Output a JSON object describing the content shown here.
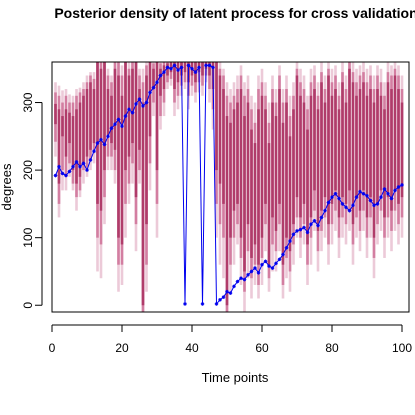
{
  "chart_data": {
    "type": "line",
    "title": "Posterior density of latent process for cross validation",
    "xlabel": "Time points",
    "ylabel": "degrees",
    "xlim": [
      0,
      102
    ],
    "ylim": [
      -10,
      360
    ],
    "x_ticks": [
      0,
      20,
      40,
      60,
      80,
      100
    ],
    "y_ticks": [
      0,
      100,
      200,
      300
    ],
    "band_colors": [
      "#b03c6a",
      "#d37ea1",
      "#eccad8"
    ],
    "line_color": "#0000ee",
    "series": [
      {
        "values": [
          [
            1,
            192
          ],
          [
            2,
            205
          ],
          [
            3,
            195
          ],
          [
            4,
            192
          ],
          [
            5,
            198
          ],
          [
            6,
            205
          ],
          [
            7,
            212
          ],
          [
            8,
            205
          ],
          [
            9,
            210
          ],
          [
            10,
            200
          ],
          [
            11,
            215
          ],
          [
            12,
            228
          ],
          [
            13,
            240
          ],
          [
            14,
            245
          ],
          [
            15,
            238
          ],
          [
            16,
            250
          ],
          [
            17,
            262
          ],
          [
            18,
            268
          ],
          [
            19,
            275
          ],
          [
            20,
            265
          ],
          [
            21,
            280
          ],
          [
            22,
            290
          ],
          [
            23,
            285
          ],
          [
            24,
            298
          ],
          [
            25,
            305
          ],
          [
            26,
            295
          ],
          [
            27,
            300
          ],
          [
            28,
            315
          ],
          [
            29,
            322
          ],
          [
            30,
            330
          ],
          [
            31,
            340
          ],
          [
            32,
            345
          ],
          [
            33,
            352
          ],
          [
            34,
            350
          ],
          [
            35,
            355
          ],
          [
            36,
            348
          ],
          [
            37,
            352
          ],
          [
            38,
            2
          ],
          [
            39,
            355
          ],
          [
            40,
            350
          ],
          [
            41,
            345
          ],
          [
            42,
            352
          ],
          [
            43,
            2
          ],
          [
            44,
            355
          ],
          [
            45,
            355
          ],
          [
            46,
            352
          ],
          [
            47,
            2
          ],
          [
            48,
            8
          ],
          [
            49,
            12
          ],
          [
            50,
            20
          ],
          [
            51,
            18
          ],
          [
            52,
            28
          ],
          [
            53,
            35
          ],
          [
            54,
            40
          ],
          [
            55,
            38
          ],
          [
            56,
            45
          ],
          [
            57,
            50
          ],
          [
            58,
            55
          ],
          [
            59,
            48
          ],
          [
            60,
            60
          ],
          [
            61,
            65
          ],
          [
            62,
            58
          ],
          [
            63,
            55
          ],
          [
            64,
            62
          ],
          [
            65,
            68
          ],
          [
            66,
            75
          ],
          [
            67,
            85
          ],
          [
            68,
            95
          ],
          [
            69,
            105
          ],
          [
            70,
            110
          ],
          [
            71,
            112
          ],
          [
            72,
            115
          ],
          [
            73,
            108
          ],
          [
            74,
            120
          ],
          [
            75,
            125
          ],
          [
            76,
            118
          ],
          [
            77,
            130
          ],
          [
            78,
            140
          ],
          [
            79,
            152
          ],
          [
            80,
            160
          ],
          [
            81,
            165
          ],
          [
            82,
            158
          ],
          [
            83,
            150
          ],
          [
            84,
            145
          ],
          [
            85,
            140
          ],
          [
            86,
            148
          ],
          [
            87,
            160
          ],
          [
            88,
            168
          ],
          [
            89,
            165
          ],
          [
            90,
            162
          ],
          [
            91,
            155
          ],
          [
            92,
            148
          ],
          [
            93,
            150
          ],
          [
            94,
            160
          ],
          [
            95,
            172
          ],
          [
            96,
            165
          ],
          [
            97,
            158
          ],
          [
            98,
            170
          ],
          [
            99,
            175
          ],
          [
            100,
            178
          ]
        ]
      }
    ],
    "bands": [
      [
        1,
        268,
        298,
        242,
        315,
        220,
        330
      ],
      [
        2,
        180,
        290,
        150,
        310,
        130,
        325
      ],
      [
        3,
        250,
        280,
        200,
        300,
        170,
        318
      ],
      [
        4,
        220,
        290,
        190,
        310,
        170,
        320
      ],
      [
        5,
        240,
        285,
        210,
        300,
        190,
        312
      ],
      [
        6,
        200,
        280,
        180,
        300,
        170,
        310
      ],
      [
        7,
        180,
        290,
        160,
        310,
        140,
        320
      ],
      [
        8,
        190,
        300,
        170,
        315,
        160,
        322
      ],
      [
        9,
        210,
        310,
        200,
        320,
        180,
        330
      ],
      [
        10,
        220,
        320,
        200,
        330,
        190,
        340
      ],
      [
        11,
        230,
        330,
        215,
        340,
        200,
        345
      ],
      [
        12,
        240,
        320,
        225,
        335,
        210,
        345
      ],
      [
        13,
        150,
        360,
        100,
        360,
        50,
        360
      ],
      [
        14,
        140,
        350,
        90,
        360,
        40,
        360
      ],
      [
        15,
        200,
        360,
        160,
        360,
        120,
        360
      ],
      [
        16,
        250,
        320,
        220,
        340,
        200,
        350
      ],
      [
        17,
        240,
        310,
        220,
        330,
        200,
        340
      ],
      [
        18,
        230,
        350,
        200,
        360,
        180,
        360
      ],
      [
        19,
        100,
        340,
        60,
        360,
        20,
        360
      ],
      [
        20,
        90,
        310,
        60,
        340,
        30,
        355
      ],
      [
        21,
        200,
        360,
        150,
        360,
        100,
        360
      ],
      [
        22,
        220,
        340,
        180,
        350,
        150,
        360
      ],
      [
        23,
        240,
        350,
        210,
        360,
        180,
        360
      ],
      [
        24,
        160,
        360,
        120,
        360,
        80,
        360
      ],
      [
        25,
        230,
        320,
        200,
        340,
        180,
        350
      ],
      [
        26,
        0,
        300,
        -10,
        330,
        -10,
        350
      ],
      [
        27,
        120,
        340,
        60,
        355,
        20,
        360
      ],
      [
        28,
        250,
        360,
        210,
        360,
        170,
        360
      ],
      [
        29,
        320,
        350,
        300,
        358,
        280,
        360
      ],
      [
        30,
        200,
        360,
        150,
        360,
        100,
        360
      ],
      [
        31,
        310,
        350,
        280,
        358,
        260,
        360
      ],
      [
        32,
        320,
        355,
        300,
        360,
        280,
        360
      ],
      [
        33,
        340,
        358,
        330,
        360,
        320,
        360
      ],
      [
        34,
        345,
        360,
        335,
        360,
        325,
        360
      ],
      [
        35,
        320,
        360,
        300,
        360,
        280,
        360
      ],
      [
        36,
        330,
        360,
        310,
        360,
        290,
        360
      ],
      [
        37,
        340,
        360,
        325,
        360,
        310,
        360
      ],
      [
        38,
        345,
        360,
        330,
        360,
        320,
        360
      ],
      [
        39,
        330,
        360,
        310,
        360,
        290,
        360
      ],
      [
        40,
        340,
        360,
        325,
        360,
        310,
        360
      ],
      [
        41,
        330,
        360,
        315,
        360,
        300,
        360
      ],
      [
        42,
        345,
        360,
        330,
        360,
        315,
        360
      ],
      [
        43,
        340,
        360,
        325,
        360,
        310,
        360
      ],
      [
        44,
        350,
        360,
        340,
        360,
        330,
        360
      ],
      [
        45,
        340,
        360,
        320,
        360,
        300,
        360
      ],
      [
        46,
        320,
        360,
        290,
        360,
        260,
        360
      ],
      [
        47,
        200,
        360,
        150,
        360,
        100,
        360
      ],
      [
        48,
        180,
        340,
        120,
        350,
        60,
        360
      ],
      [
        49,
        150,
        320,
        100,
        340,
        40,
        350
      ],
      [
        50,
        0,
        280,
        -10,
        310,
        -10,
        330
      ],
      [
        51,
        100,
        270,
        60,
        300,
        20,
        320
      ],
      [
        52,
        140,
        290,
        100,
        310,
        60,
        330
      ],
      [
        53,
        150,
        300,
        120,
        320,
        90,
        340
      ],
      [
        54,
        100,
        320,
        70,
        340,
        30,
        355
      ],
      [
        55,
        50,
        280,
        20,
        310,
        -10,
        330
      ],
      [
        56,
        120,
        300,
        80,
        320,
        40,
        340
      ],
      [
        57,
        70,
        260,
        40,
        290,
        10,
        310
      ],
      [
        58,
        90,
        240,
        60,
        270,
        30,
        300
      ],
      [
        59,
        60,
        290,
        30,
        320,
        10,
        340
      ],
      [
        60,
        100,
        310,
        70,
        330,
        30,
        350
      ],
      [
        61,
        150,
        290,
        120,
        310,
        80,
        330
      ],
      [
        62,
        60,
        240,
        40,
        270,
        20,
        300
      ],
      [
        63,
        130,
        300,
        90,
        320,
        50,
        340
      ],
      [
        64,
        110,
        280,
        80,
        300,
        50,
        320
      ],
      [
        65,
        150,
        320,
        120,
        340,
        80,
        355
      ],
      [
        66,
        60,
        270,
        30,
        300,
        10,
        320
      ],
      [
        67,
        100,
        300,
        70,
        320,
        40,
        340
      ],
      [
        68,
        80,
        250,
        50,
        280,
        20,
        310
      ],
      [
        69,
        120,
        290,
        90,
        310,
        60,
        330
      ],
      [
        70,
        160,
        340,
        130,
        350,
        100,
        360
      ],
      [
        71,
        130,
        310,
        100,
        330,
        70,
        350
      ],
      [
        72,
        150,
        300,
        120,
        320,
        90,
        340
      ],
      [
        73,
        90,
        260,
        60,
        290,
        30,
        310
      ],
      [
        74,
        130,
        310,
        100,
        330,
        60,
        350
      ],
      [
        75,
        170,
        320,
        140,
        340,
        110,
        355
      ],
      [
        76,
        110,
        290,
        80,
        310,
        50,
        330
      ],
      [
        77,
        140,
        330,
        110,
        345,
        80,
        360
      ],
      [
        78,
        160,
        300,
        130,
        320,
        100,
        340
      ],
      [
        79,
        120,
        340,
        90,
        350,
        60,
        360
      ],
      [
        80,
        150,
        310,
        120,
        330,
        90,
        350
      ],
      [
        81,
        170,
        320,
        140,
        340,
        110,
        355
      ],
      [
        82,
        130,
        290,
        100,
        310,
        70,
        330
      ],
      [
        83,
        160,
        330,
        130,
        345,
        100,
        360
      ],
      [
        84,
        150,
        300,
        120,
        320,
        90,
        340
      ],
      [
        85,
        170,
        350,
        140,
        360,
        110,
        360
      ],
      [
        86,
        120,
        330,
        90,
        345,
        60,
        360
      ],
      [
        87,
        160,
        310,
        130,
        330,
        100,
        350
      ],
      [
        88,
        140,
        320,
        110,
        340,
        80,
        355
      ],
      [
        89,
        170,
        330,
        140,
        345,
        110,
        360
      ],
      [
        90,
        130,
        310,
        100,
        330,
        70,
        350
      ],
      [
        91,
        160,
        320,
        130,
        340,
        100,
        355
      ],
      [
        92,
        100,
        300,
        70,
        320,
        40,
        340
      ],
      [
        93,
        150,
        320,
        120,
        340,
        90,
        355
      ],
      [
        94,
        170,
        310,
        140,
        330,
        110,
        350
      ],
      [
        95,
        130,
        290,
        100,
        310,
        70,
        330
      ],
      [
        96,
        160,
        330,
        130,
        345,
        100,
        360
      ],
      [
        97,
        140,
        320,
        110,
        340,
        80,
        355
      ],
      [
        98,
        170,
        340,
        140,
        350,
        110,
        360
      ],
      [
        99,
        150,
        320,
        120,
        340,
        90,
        355
      ],
      [
        100,
        160,
        300,
        130,
        320,
        100,
        340
      ]
    ]
  }
}
